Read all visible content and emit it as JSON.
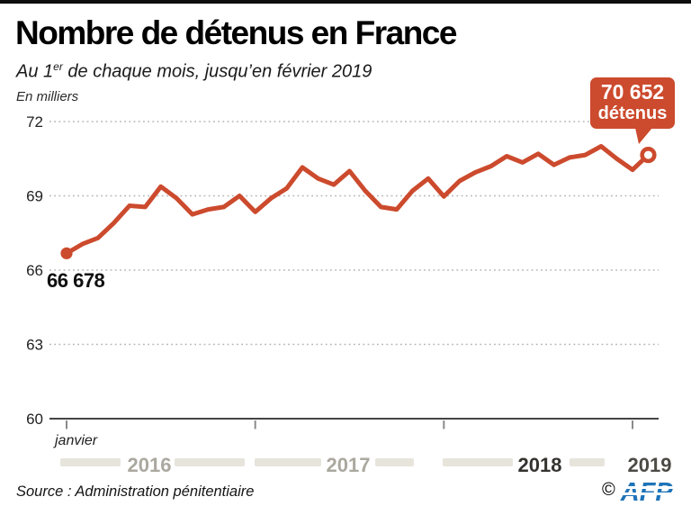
{
  "header": {
    "title": "Nombre de détenus en France",
    "subtitle_prefix": "Au 1",
    "subtitle_sup": "er",
    "subtitle_rest": " de chaque mois, jusqu’en février 2019",
    "unit_label": "En milliers"
  },
  "chart_data": {
    "type": "line",
    "title": "Nombre de détenus en France",
    "subtitle": "Au 1er de chaque mois, jusqu'en février 2019",
    "unit": "En milliers (détenus)",
    "line_color": "#cc4a2d",
    "grid": "dotted horizontal",
    "ylim": [
      60000,
      72000
    ],
    "yticks_thousands": [
      72,
      69,
      66,
      63,
      60
    ],
    "x": [
      "2016-01",
      "2016-02",
      "2016-03",
      "2016-04",
      "2016-05",
      "2016-06",
      "2016-07",
      "2016-08",
      "2016-09",
      "2016-10",
      "2016-11",
      "2016-12",
      "2017-01",
      "2017-02",
      "2017-03",
      "2017-04",
      "2017-05",
      "2017-06",
      "2017-07",
      "2017-08",
      "2017-09",
      "2017-10",
      "2017-11",
      "2017-12",
      "2018-01",
      "2018-02",
      "2018-03",
      "2018-04",
      "2018-05",
      "2018-06",
      "2018-07",
      "2018-08",
      "2018-09",
      "2018-10",
      "2018-11",
      "2018-12",
      "2019-01",
      "2019-02"
    ],
    "values": [
      66678,
      67050,
      67300,
      67900,
      68600,
      68550,
      69375,
      68900,
      68250,
      68450,
      68550,
      69000,
      68350,
      68900,
      69300,
      70150,
      69700,
      69450,
      70000,
      69200,
      68550,
      68450,
      69200,
      69700,
      68974,
      69600,
      69950,
      70200,
      70600,
      70350,
      70700,
      70250,
      70550,
      70650,
      71000,
      70500,
      70050,
      70652
    ],
    "first_point_value": 66678,
    "last_point_value": 70652,
    "years": [
      {
        "label": "2016",
        "color": "#aba89f"
      },
      {
        "label": "2017",
        "color": "#aba89f"
      },
      {
        "label": "2018",
        "color": "#35332f"
      },
      {
        "label": "2019",
        "color": "#4d4b46"
      }
    ]
  },
  "x_axis": {
    "month_label": "janvier"
  },
  "annotations": {
    "start_value": "66 678",
    "callout_value": "70 652",
    "callout_unit": "détenus"
  },
  "footer": {
    "source": "Source : Administration pénitentiaire",
    "copyright": "©",
    "logo_text": "AFP"
  }
}
